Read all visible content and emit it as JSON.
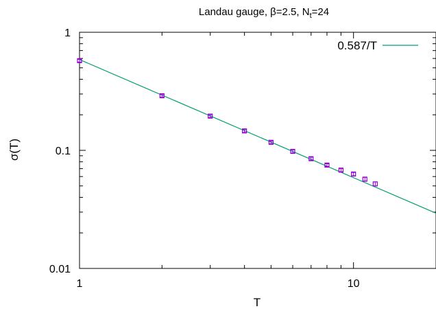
{
  "chart_data": {
    "type": "scatter",
    "title": "Landau gauge, β=2.5, N",
    "title_sub": "t",
    "title_suffix": "=24",
    "xlabel": "T",
    "ylabel": "σ(T)",
    "xscale": "log",
    "yscale": "log",
    "xlim": [
      1,
      20
    ],
    "ylim": [
      0.01,
      1
    ],
    "x_ticks": [
      {
        "value": 1,
        "label": "1"
      },
      {
        "value": 10,
        "label": "10"
      }
    ],
    "y_ticks": [
      {
        "value": 0.01,
        "label": "0.01"
      },
      {
        "value": 0.1,
        "label": "0.1"
      },
      {
        "value": 1,
        "label": "1"
      }
    ],
    "grid": false,
    "legend_position": "top-right",
    "series": [
      {
        "kind": "points",
        "color": "#9400d3",
        "x": [
          1,
          2,
          3,
          4,
          5,
          6,
          7,
          8,
          9,
          10,
          11,
          12
        ],
        "y": [
          0.575,
          0.29,
          0.195,
          0.146,
          0.117,
          0.098,
          0.085,
          0.075,
          0.068,
          0.063,
          0.057,
          0.052
        ],
        "yerr": [
          0.015,
          0.007,
          0.005,
          0.004,
          0.003,
          0.003,
          0.0025,
          0.002,
          0.002,
          0.002,
          0.002,
          0.002
        ]
      },
      {
        "kind": "line",
        "name": "0.587/T",
        "color": "#009e73",
        "formula_coefficient": 0.587
      }
    ]
  }
}
